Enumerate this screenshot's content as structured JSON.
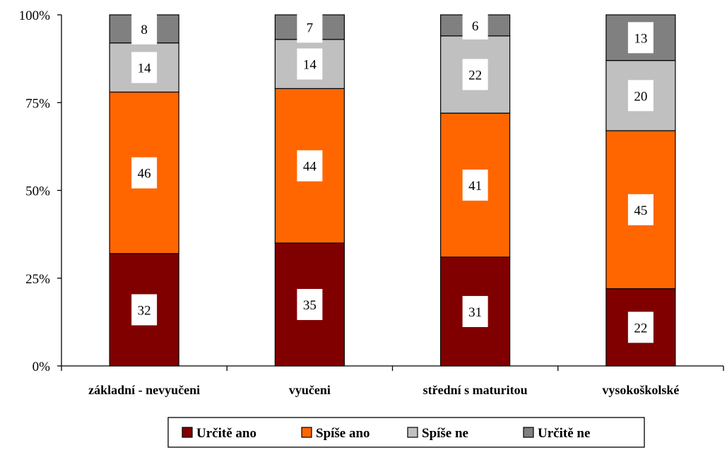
{
  "chart_data": {
    "type": "bar",
    "stacked": true,
    "normalized": true,
    "categories": [
      "základní - nevyučeni",
      "vyučeni",
      "střední s maturitou",
      "vysokoškolské"
    ],
    "series": [
      {
        "name": "Určitě ano",
        "color": "#800000",
        "values": [
          32,
          35,
          31,
          22
        ]
      },
      {
        "name": "Spíše ano",
        "color": "#FF6600",
        "values": [
          46,
          44,
          41,
          45
        ]
      },
      {
        "name": "Spíše ne",
        "color": "#C0C0C0",
        "values": [
          14,
          14,
          22,
          20
        ]
      },
      {
        "name": "Určitě ne",
        "color": "#808080",
        "values": [
          8,
          7,
          6,
          13
        ]
      }
    ],
    "y_ticks": [
      "0%",
      "25%",
      "50%",
      "75%",
      "100%"
    ],
    "ylim": [
      0,
      100
    ],
    "grid": false,
    "legend_position": "bottom"
  }
}
